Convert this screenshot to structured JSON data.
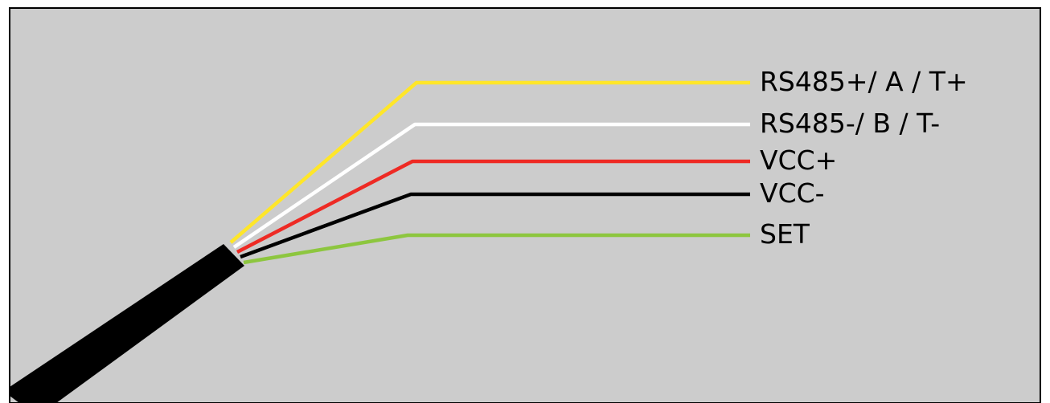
{
  "diagram": {
    "background_color": "#cccccc",
    "frame_color": "#000000",
    "cable_color": "#000000",
    "wires": [
      {
        "id": "rs485-plus",
        "label": "RS485+/ A / T+",
        "color": "#ffe629"
      },
      {
        "id": "rs485-minus",
        "label": "RS485-/ B / T-",
        "color": "#ffffff"
      },
      {
        "id": "vcc-plus",
        "label": "VCC+",
        "color": "#ee2a24"
      },
      {
        "id": "vcc-minus",
        "label": "VCC-",
        "color": "#000000"
      },
      {
        "id": "set",
        "label": "SET",
        "color": "#8dc63f"
      }
    ]
  }
}
